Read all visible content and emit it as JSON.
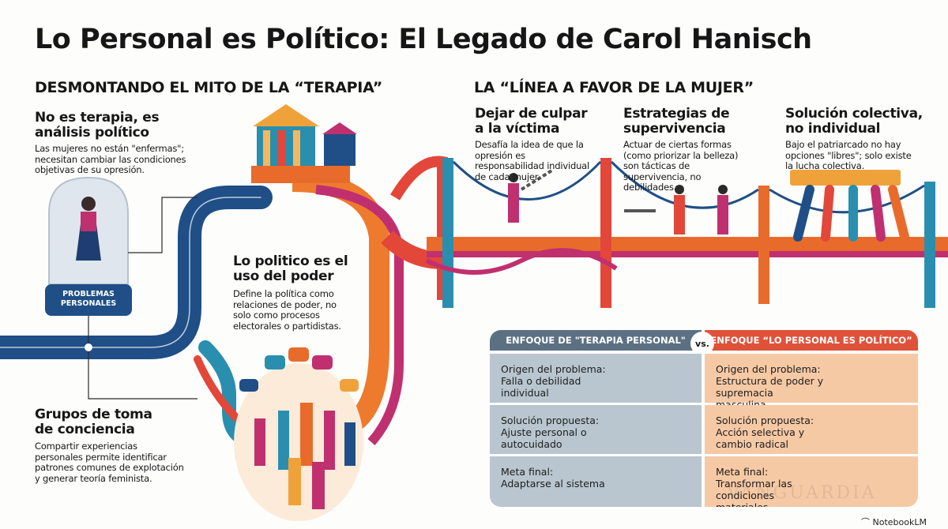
{
  "title": "Lo Personal es Político: El Legado de Carol Hanisch",
  "left_section": {
    "heading": "DESMONTANDO EL MITO DE LA “TERAPIA”",
    "therapy": {
      "title_line1": "No es terapia, es",
      "title_line2": "análisis político",
      "body": "Las mujeres no están \"enfermas\"; necesitan cambiar las condiciones objetivas de su opresión."
    },
    "jar_label_line1": "PROBLEMAS",
    "jar_label_line2": "PERSONALES",
    "power": {
      "title_line1": "Lo politico es el",
      "title_line2": "uso del poder",
      "body": "Define la política como relaciones de poder, no solo como procesos electorales o partidistas."
    },
    "groups": {
      "title_line1": "Grupos de toma",
      "title_line2": "de conciencia",
      "body": "Compartir experiencias personales permite identificar patrones comunes de explotación y generar teoría feminista."
    }
  },
  "right_section": {
    "heading": "LA “LÍNEA A FAVOR DE LA MUJER”",
    "items": [
      {
        "title_line1": "Dejar de culpar",
        "title_line2": "a la víctima",
        "body": "Desafía la idea de que la opresión es responsabilidad individual de cada mujer."
      },
      {
        "title_line1": "Estrategias de",
        "title_line2": "supervivencia",
        "body": "Actuar de ciertas formas (como priorizar la belleza) son tácticas de supervivencia, no debilidades."
      },
      {
        "title_line1": "Solución colectiva,",
        "title_line2": "no individual",
        "body": "Bajo el patriarcado no hay opciones \"libres\"; solo existe la lucha colectiva."
      }
    ]
  },
  "comparison": {
    "left_header": "ENFOQUE DE \"TERAPIA PERSONAL\"",
    "vs": "vs.",
    "right_header": "ENFOQUE “LO PERSONAL ES POLÍTICO”",
    "rows": [
      {
        "left_label": "Origen del problema:",
        "left_text": "Falla o debilidad individual",
        "right_label": "Origen del problema:",
        "right_text": "Estructura de poder y supremacia masculina"
      },
      {
        "left_label": "Solución propuesta:",
        "left_text": "Ajuste personal o autocuidado",
        "right_label": "Solución propuesta:",
        "right_text": "Acción selectiva y cambio radical"
      },
      {
        "left_label": "Meta final:",
        "left_text": "Adaptarse al sistema",
        "right_label": "Meta final:",
        "right_text": "Transformar las condiciones materiales"
      }
    ],
    "colors": {
      "left_header": "#5b7183",
      "right_header": "#e0513a",
      "left_cell": "#b9c6cf",
      "right_cell": "#f6c9a5"
    }
  },
  "watermark": "VANGUARDIA",
  "branding": "NotebookLM",
  "colors": {
    "blue": "#1f4f86",
    "teal": "#2a8fae",
    "orange": "#ee7a2e",
    "red": "#e2473a",
    "magenta": "#c0306f"
  }
}
